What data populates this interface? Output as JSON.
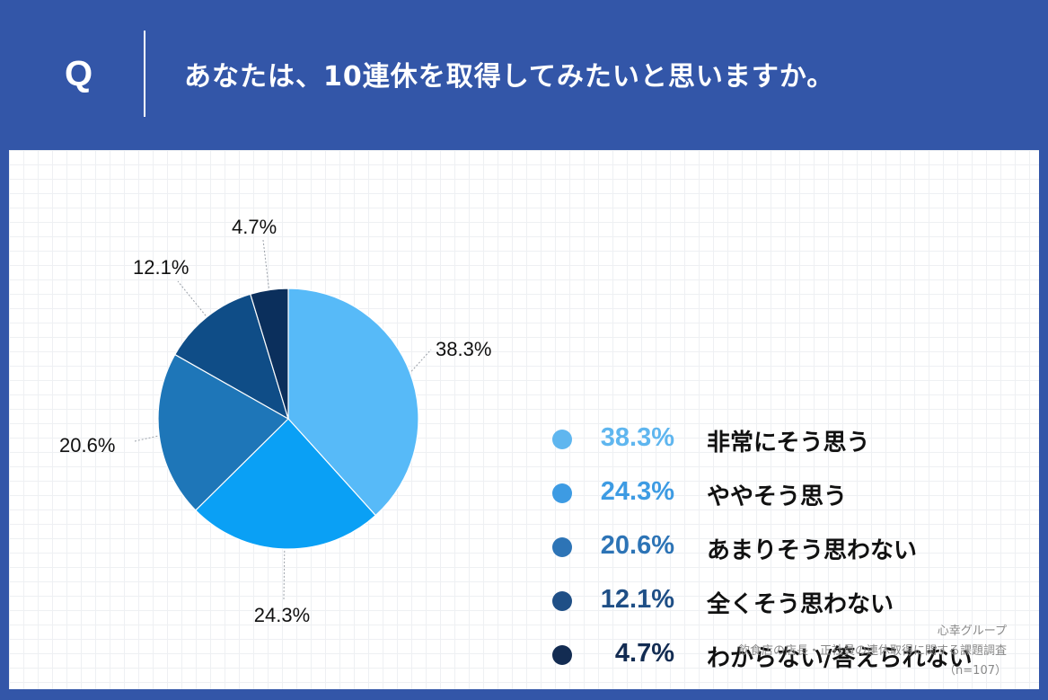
{
  "header": {
    "q_mark": "Q",
    "question": "あなたは、10連休を取得してみたいと思いますか。"
  },
  "chart_data": {
    "type": "pie",
    "categories": [
      "非常にそう思う",
      "ややそう思う",
      "あまりそう思わない",
      "全くそう思わない",
      "わからない/答えられない"
    ],
    "values": [
      38.3,
      24.3,
      20.6,
      12.1,
      4.7
    ],
    "value_labels": [
      "38.3%",
      "24.3%",
      "20.6%",
      "12.1%",
      "4.7%"
    ],
    "colors": [
      "#57baf8",
      "#0aa0f5",
      "#1e76b8",
      "#0f4d87",
      "#0b2f5c"
    ],
    "legend_dot_colors": [
      "#5fb6ef",
      "#3d9be3",
      "#2d74b6",
      "#1f4f86",
      "#132c52"
    ],
    "legend_text_colors": [
      "#5fb6ef",
      "#3d9be3",
      "#2d74b6",
      "#1f4f86",
      "#132c52"
    ],
    "start_angle": "12 o'clock, clockwise",
    "legend_position": "right"
  },
  "source": {
    "company": "心幸グループ",
    "survey": "飲食店の店長・正社員の連休取得に関する課題調査",
    "sample": "（n=107）"
  }
}
